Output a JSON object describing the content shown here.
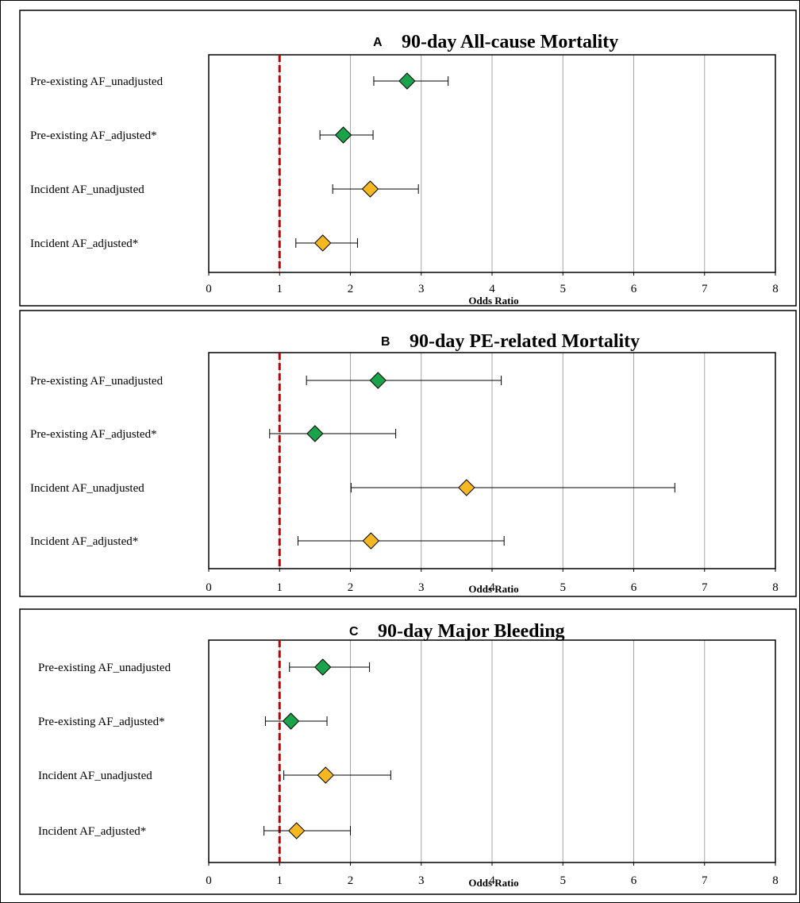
{
  "chart_data": [
    {
      "type": "scatter",
      "panel": "A",
      "title": "90-day All-cause Mortality",
      "xlabel": "Odds Ratio",
      "xlim": [
        0,
        8
      ],
      "xticks": [
        0,
        1,
        2,
        3,
        4,
        5,
        6,
        7,
        8
      ],
      "reference_line": 1,
      "rows": [
        {
          "label": "Pre-existing AF_unadjusted",
          "or": 2.8,
          "lo": 2.33,
          "hi": 3.38,
          "color": "#1aa34a"
        },
        {
          "label": "Pre-existing AF_adjusted*",
          "or": 1.9,
          "lo": 1.57,
          "hi": 2.32,
          "color": "#1aa34a"
        },
        {
          "label": "Incident AF_unadjusted",
          "or": 2.28,
          "lo": 1.75,
          "hi": 2.96,
          "color": "#f5b820"
        },
        {
          "label": "Incident AF_adjusted*",
          "or": 1.61,
          "lo": 1.23,
          "hi": 2.1,
          "color": "#f5b820"
        }
      ]
    },
    {
      "type": "scatter",
      "panel": "B",
      "title": "90-day PE-related Mortality",
      "xlabel": "Odds Ratio",
      "xlim": [
        0,
        8
      ],
      "xticks": [
        0,
        1,
        2,
        3,
        4,
        5,
        6,
        7,
        8
      ],
      "reference_line": 1,
      "rows": [
        {
          "label": "Pre-existing AF_unadjusted",
          "or": 2.39,
          "lo": 1.38,
          "hi": 4.13,
          "color": "#1aa34a"
        },
        {
          "label": "Pre-existing AF_adjusted*",
          "or": 1.5,
          "lo": 0.86,
          "hi": 2.64,
          "color": "#1aa34a"
        },
        {
          "label": "Incident AF_unadjusted",
          "or": 3.64,
          "lo": 2.01,
          "hi": 6.58,
          "color": "#f5b820"
        },
        {
          "label": "Incident AF_adjusted*",
          "or": 2.29,
          "lo": 1.26,
          "hi": 4.17,
          "color": "#f5b820"
        }
      ]
    },
    {
      "type": "scatter",
      "panel": "C",
      "title": "90-day Major Bleeding",
      "xlabel": "Odds Ratio",
      "xlim": [
        0,
        8
      ],
      "xticks": [
        0,
        1,
        2,
        3,
        4,
        5,
        6,
        7,
        8
      ],
      "reference_line": 1,
      "rows": [
        {
          "label": "Pre-existing AF_unadjusted",
          "or": 1.61,
          "lo": 1.14,
          "hi": 2.27,
          "color": "#1aa34a"
        },
        {
          "label": "Pre-existing AF_adjusted*",
          "or": 1.16,
          "lo": 0.8,
          "hi": 1.67,
          "color": "#1aa34a"
        },
        {
          "label": "Incident AF_unadjusted",
          "or": 1.65,
          "lo": 1.06,
          "hi": 2.57,
          "color": "#f5b820"
        },
        {
          "label": "Incident AF_adjusted*",
          "or": 1.24,
          "lo": 0.78,
          "hi": 2.0,
          "color": "#f5b820"
        }
      ]
    }
  ]
}
